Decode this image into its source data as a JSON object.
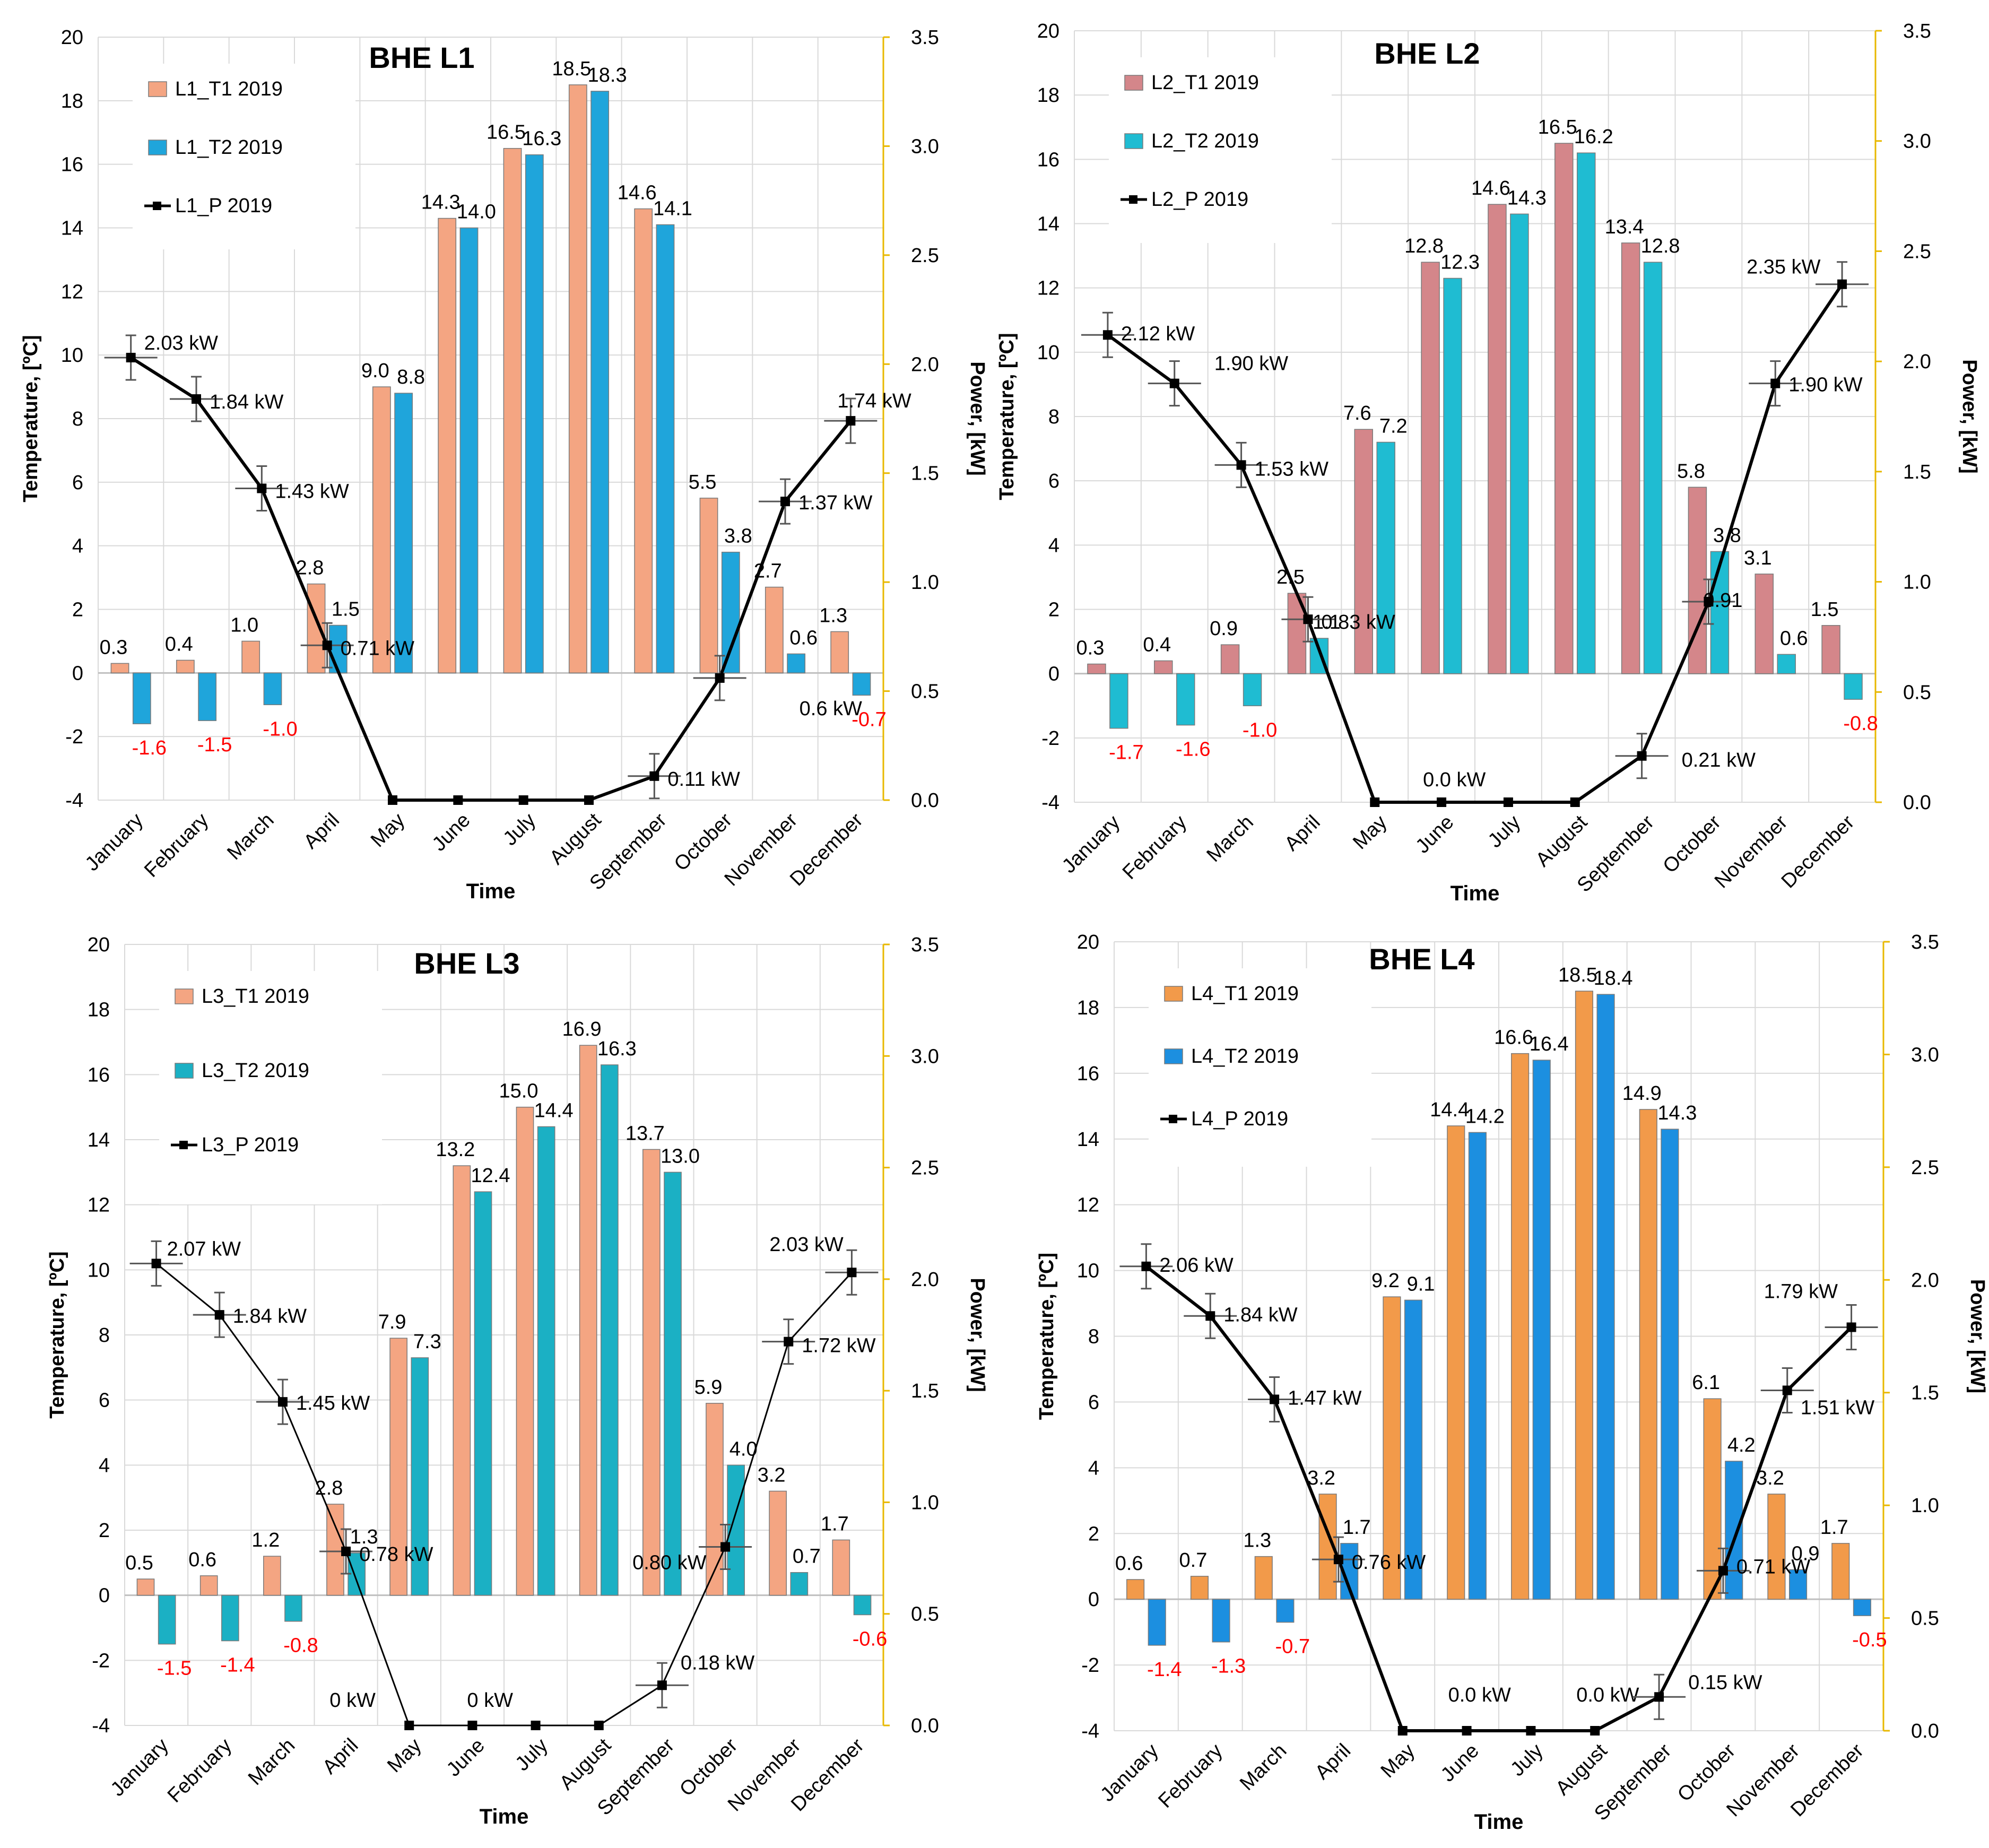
{
  "chart_data": [
    {
      "type": "bar",
      "title": "BHE L1",
      "xlabel": "Time",
      "ylabel": "Temperature, [ºC]",
      "y2label": "Power, [kW]",
      "ylim": [
        -4,
        20
      ],
      "y2lim": [
        0.0,
        3.5
      ],
      "y_ticks": [
        "-4",
        "-2",
        "0",
        "2",
        "4",
        "6",
        "8",
        "10",
        "12",
        "14",
        "16",
        "18",
        "20"
      ],
      "y2_ticks": [
        "0.0",
        "0.5",
        "1.0",
        "1.5",
        "2.0",
        "2.5",
        "3.0",
        "3.5"
      ],
      "categories": [
        "January",
        "February",
        "March",
        "April",
        "May",
        "June",
        "July",
        "August",
        "September",
        "October",
        "November",
        "December"
      ],
      "legend_position": "top-left",
      "series": [
        {
          "name": "L1_T1 2019",
          "kind": "bar",
          "color": "#F4A582",
          "values": [
            0.3,
            0.4,
            1.0,
            2.8,
            9.0,
            14.3,
            16.5,
            18.5,
            14.6,
            5.5,
            2.7,
            1.3
          ],
          "labels": [
            "0.3",
            "0.4",
            "1.0",
            "2.8",
            "9.0",
            "14.3",
            "16.5",
            "18.5",
            "14.6",
            "5.5",
            "2.7",
            "1.3"
          ]
        },
        {
          "name": "L1_T2 2019",
          "kind": "bar",
          "color": "#1FA5DB",
          "values": [
            -1.6,
            -1.5,
            -1.0,
            1.5,
            8.8,
            14.0,
            16.3,
            18.3,
            14.1,
            3.8,
            0.6,
            -0.7
          ],
          "labels": [
            "-1.6",
            "-1.5",
            "-1.0",
            "1.5",
            "8.8",
            "14.0",
            "16.3",
            "18.3",
            "14.1",
            "3.8",
            "0.6",
            "-0.7"
          ]
        },
        {
          "name": "L1_P 2019",
          "kind": "line",
          "axis": "y2",
          "color": "#000000",
          "values": [
            2.03,
            1.84,
            1.43,
            0.71,
            0.0,
            0.0,
            0.0,
            0.0,
            0.11,
            0.56,
            1.37,
            1.74
          ],
          "labels": [
            "2.03 kW",
            "1.84 kW",
            "1.43 kW",
            "0.71 kW",
            "",
            "",
            "",
            "",
            "0.11 kW",
            "0.6 kW",
            "1.37 kW",
            "1.74 kW"
          ]
        }
      ]
    },
    {
      "type": "bar",
      "title": "BHE L2",
      "xlabel": "Time",
      "ylabel": "Temperature, [ºC]",
      "y2label": "Power, [kW]",
      "ylim": [
        -4,
        20
      ],
      "y2lim": [
        0.0,
        3.5
      ],
      "y_ticks": [
        "-4",
        "-2",
        "0",
        "2",
        "4",
        "6",
        "8",
        "10",
        "12",
        "14",
        "16",
        "18",
        "20"
      ],
      "y2_ticks": [
        "0.0",
        "0.5",
        "1.0",
        "1.5",
        "2.0",
        "2.5",
        "3.0",
        "3.5"
      ],
      "categories": [
        "January",
        "February",
        "March",
        "April",
        "May",
        "June",
        "July",
        "August",
        "September",
        "October",
        "November",
        "December"
      ],
      "legend_position": "top-left",
      "series": [
        {
          "name": "L2_T1 2019",
          "kind": "bar",
          "color": "#D4868A",
          "values": [
            0.3,
            0.4,
            0.9,
            2.5,
            7.6,
            12.8,
            14.6,
            16.5,
            13.4,
            5.8,
            3.1,
            1.5
          ],
          "labels": [
            "0.3",
            "0.4",
            "0.9",
            "2.5",
            "7.6",
            "12.8",
            "14.6",
            "16.5",
            "13.4",
            "5.8",
            "3.1",
            "1.5"
          ]
        },
        {
          "name": "L2_T2 2019",
          "kind": "bar",
          "color": "#1FBCD2",
          "values": [
            -1.7,
            -1.6,
            -1.0,
            1.1,
            7.2,
            12.3,
            14.3,
            16.2,
            12.8,
            3.8,
            0.6,
            -0.8
          ],
          "labels": [
            "-1.7",
            "-1.6",
            "-1.0",
            "1.1",
            "7.2",
            "12.3",
            "14.3",
            "16.2",
            "12.8",
            "3.8",
            "0.6",
            "-0.8"
          ]
        },
        {
          "name": "L2_P 2019",
          "kind": "line",
          "axis": "y2",
          "color": "#000000",
          "values": [
            2.12,
            1.9,
            1.53,
            0.83,
            0.0,
            0.0,
            0.0,
            0.0,
            0.21,
            0.91,
            1.9,
            2.35
          ],
          "labels": [
            "2.12 kW",
            "1.90 kW",
            "1.53 kW",
            "0.83 kW",
            "",
            "0.0 kW",
            "",
            "",
            "0.21 kW",
            "0.91",
            "1.90 kW",
            "2.35 kW"
          ]
        }
      ]
    },
    {
      "type": "bar",
      "title": "BHE L3",
      "xlabel": "Time",
      "ylabel": "Temperature, [ºC]",
      "y2label": "Power, [kW]",
      "ylim": [
        -4,
        20
      ],
      "y2lim": [
        0.0,
        3.5
      ],
      "y_ticks": [
        "-4",
        "-2",
        "0",
        "2",
        "4",
        "6",
        "8",
        "10",
        "12",
        "14",
        "16",
        "18",
        "20"
      ],
      "y2_ticks": [
        "0.0",
        "0.5",
        "1.0",
        "1.5",
        "2.0",
        "2.5",
        "3.0",
        "3.5"
      ],
      "categories": [
        "January",
        "February",
        "March",
        "April",
        "May",
        "June",
        "July",
        "August",
        "September",
        "October",
        "November",
        "December"
      ],
      "legend_position": "top-left",
      "series": [
        {
          "name": "L3_T1 2019",
          "kind": "bar",
          "color": "#F4A582",
          "values": [
            0.5,
            0.6,
            1.2,
            2.8,
            7.9,
            13.2,
            15.0,
            16.9,
            13.7,
            5.9,
            3.2,
            1.7
          ],
          "labels": [
            "0.5",
            "0.6",
            "1.2",
            "2.8",
            "7.9",
            "13.2",
            "15.0",
            "16.9",
            "13.7",
            "5.9",
            "3.2",
            "1.7"
          ]
        },
        {
          "name": "L3_T2 2019",
          "kind": "bar",
          "color": "#1BB0C4",
          "values": [
            -1.5,
            -1.4,
            -0.8,
            1.3,
            7.3,
            12.4,
            14.4,
            16.3,
            13.0,
            4.0,
            0.7,
            -0.6
          ],
          "labels": [
            "-1.5",
            "-1.4",
            "-0.8",
            "1.3",
            "7.3",
            "12.4",
            "14.4",
            "16.3",
            "13.0",
            "4.0",
            "0.7",
            "-0.6"
          ]
        },
        {
          "name": "L3_P 2019",
          "kind": "line",
          "axis": "y2",
          "color": "#000000",
          "values": [
            2.07,
            1.84,
            1.45,
            0.78,
            0.0,
            0.0,
            0.0,
            0.0,
            0.18,
            0.8,
            1.72,
            2.03
          ],
          "labels": [
            "2.07 kW",
            "1.84 kW",
            "1.45 kW",
            "0.78 kW",
            "0 kW",
            "0 kW",
            "",
            "",
            "0.18 kW",
            "0.80 kW",
            "1.72 kW",
            "2.03 kW"
          ]
        }
      ]
    },
    {
      "type": "bar",
      "title": "BHE L4",
      "xlabel": "Time",
      "ylabel": "Temperature, [ºC]",
      "y2label": "Power, [kW]",
      "ylim": [
        -4,
        20
      ],
      "y2lim": [
        0.0,
        3.5
      ],
      "y_ticks": [
        "-4",
        "-2",
        "0",
        "2",
        "4",
        "6",
        "8",
        "10",
        "12",
        "14",
        "16",
        "18",
        "20"
      ],
      "y2_ticks": [
        "0.0",
        "0.5",
        "1.0",
        "1.5",
        "2.0",
        "2.5",
        "3.0",
        "3.5"
      ],
      "categories": [
        "January",
        "February",
        "March",
        "April",
        "May",
        "June",
        "July",
        "August",
        "September",
        "October",
        "November",
        "December"
      ],
      "legend_position": "top-left",
      "series": [
        {
          "name": "L4_T1 2019",
          "kind": "bar",
          "color": "#F29A4A",
          "values": [
            0.6,
            0.7,
            1.3,
            3.2,
            9.2,
            14.4,
            16.6,
            18.5,
            14.9,
            6.1,
            3.2,
            1.7
          ],
          "labels": [
            "0.6",
            "0.7",
            "1.3",
            "3.2",
            "9.2",
            "14.4",
            "16.6",
            "18.5",
            "14.9",
            "6.1",
            "3.2",
            "1.7"
          ]
        },
        {
          "name": "L4_T2 2019",
          "kind": "bar",
          "color": "#1C8FE0",
          "values": [
            -1.4,
            -1.3,
            -0.7,
            1.7,
            9.1,
            14.2,
            16.4,
            18.4,
            14.3,
            4.2,
            0.9,
            -0.5
          ],
          "labels": [
            "-1.4",
            "-1.3",
            "-0.7",
            "1.7",
            "9.1",
            "14.2",
            "16.4",
            "18.4",
            "14.3",
            "4.2",
            "0.9",
            "-0.5"
          ]
        },
        {
          "name": "L4_P 2019",
          "kind": "line",
          "axis": "y2",
          "color": "#000000",
          "values": [
            2.06,
            1.84,
            1.47,
            0.76,
            0.0,
            0.0,
            0.0,
            0.0,
            0.15,
            0.71,
            1.51,
            1.79
          ],
          "labels": [
            "2.06 kW",
            "1.84 kW",
            "1.47 kW",
            "0.76 kW",
            "",
            "0.0 kW",
            "",
            "0.0 kW",
            "0.15 kW",
            "0.71 kW",
            "1.51 kW",
            "1.79 kW"
          ]
        }
      ]
    }
  ]
}
